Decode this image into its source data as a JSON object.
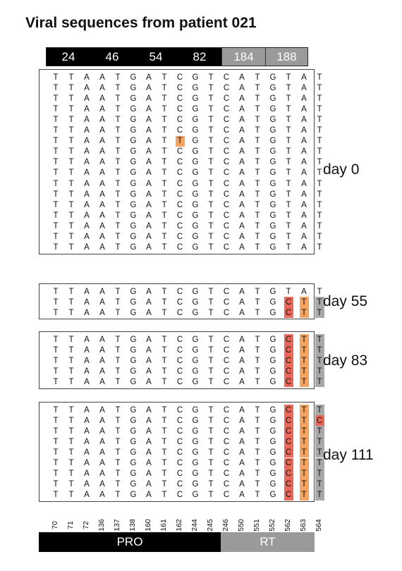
{
  "title": "Viral sequences from patient 021",
  "header_bar": [
    {
      "label": "24",
      "color": "#000000"
    },
    {
      "label": "46",
      "color": "#000000"
    },
    {
      "label": "54",
      "color": "#000000"
    },
    {
      "label": "82",
      "color": "#000000"
    },
    {
      "label": "184",
      "color": "#9a9a9a"
    },
    {
      "label": "188",
      "color": "#9a9a9a"
    }
  ],
  "colors": {
    "orange": "#f4a460",
    "red": "#e9685a",
    "gray": "#a8a8a8"
  },
  "positions": [
    "70",
    "71",
    "72",
    "136",
    "137",
    "138",
    "160",
    "161",
    "162",
    "244",
    "245",
    "246",
    "550",
    "551",
    "552",
    "562",
    "563",
    "564"
  ],
  "reference": "TTAATGATCGTCATGTAT",
  "blocks": [
    {
      "label": "day 0",
      "rows": [
        {
          "seq": "TTAATGATCGTCATGTAT",
          "marks": []
        },
        {
          "seq": "TTAATGATCGTCATGTAT",
          "marks": []
        },
        {
          "seq": "TTAATGATCGTCATGTAT",
          "marks": []
        },
        {
          "seq": "TTAATGATCGTCATGTAT",
          "marks": []
        },
        {
          "seq": "TTAATGATCGTCATGTAT",
          "marks": []
        },
        {
          "seq": "TTAATGATCGTCATGTAT",
          "marks": []
        },
        {
          "seq": "TTAATGATTGTCATGTAT",
          "marks": [
            {
              "col": 8,
              "color": "orange"
            }
          ]
        },
        {
          "seq": "TTAATGATCGTCATGTAT",
          "marks": []
        },
        {
          "seq": "TTAATGATCGTCATGTAT",
          "marks": []
        },
        {
          "seq": "TTAATGATCGTCATGTAT",
          "marks": []
        },
        {
          "seq": "TTAATGATCGTCATGTAT",
          "marks": []
        },
        {
          "seq": "TTAATGATCGTCATGTAT",
          "marks": []
        },
        {
          "seq": "TTAATGATCGTCATGTAT",
          "marks": []
        },
        {
          "seq": "TTAATGATCGTCATGTAT",
          "marks": []
        },
        {
          "seq": "TTAATGATCGTCATGTAT",
          "marks": []
        },
        {
          "seq": "TTAATGATCGTCATGTAT",
          "marks": []
        },
        {
          "seq": "TTAATGATCGTCATGTAT",
          "marks": []
        }
      ]
    },
    {
      "label": "day 55",
      "rows": [
        {
          "seq": "TTAATGATCGTCATGTAT",
          "marks": []
        },
        {
          "seq": "TTAATGATCGTCATGCTT",
          "marks": [
            {
              "col": 15,
              "color": "red"
            },
            {
              "col": 16,
              "color": "orange"
            },
            {
              "col": 17,
              "color": "gray"
            }
          ]
        },
        {
          "seq": "TTAATGATCGTCATGCTT",
          "marks": [
            {
              "col": 15,
              "color": "red"
            },
            {
              "col": 16,
              "color": "orange"
            },
            {
              "col": 17,
              "color": "gray"
            }
          ]
        }
      ]
    },
    {
      "label": "day 83",
      "rows": [
        {
          "seq": "TTAATGATCGTCATGCTT",
          "marks": [
            {
              "col": 15,
              "color": "red"
            },
            {
              "col": 16,
              "color": "orange"
            },
            {
              "col": 17,
              "color": "gray"
            }
          ]
        },
        {
          "seq": "TTAATGATCGTCATGCTT",
          "marks": [
            {
              "col": 15,
              "color": "red"
            },
            {
              "col": 16,
              "color": "orange"
            },
            {
              "col": 17,
              "color": "gray"
            }
          ]
        },
        {
          "seq": "TTAATGATCGTCATGCTT",
          "marks": [
            {
              "col": 15,
              "color": "red"
            },
            {
              "col": 16,
              "color": "orange"
            },
            {
              "col": 17,
              "color": "gray"
            }
          ]
        },
        {
          "seq": "TTAATGATCGTCATGCTT",
          "marks": [
            {
              "col": 15,
              "color": "red"
            },
            {
              "col": 16,
              "color": "orange"
            },
            {
              "col": 17,
              "color": "gray"
            }
          ]
        },
        {
          "seq": "TTAATGATCGTCATGCTT",
          "marks": [
            {
              "col": 15,
              "color": "red"
            },
            {
              "col": 16,
              "color": "orange"
            },
            {
              "col": 17,
              "color": "gray"
            }
          ]
        }
      ]
    },
    {
      "label": "day 111",
      "rows": [
        {
          "seq": "TTAATGATCGTCATGCTT",
          "marks": [
            {
              "col": 15,
              "color": "red"
            },
            {
              "col": 16,
              "color": "orange"
            },
            {
              "col": 17,
              "color": "gray"
            }
          ]
        },
        {
          "seq": "TTAATGATCGTCATGCTC",
          "marks": [
            {
              "col": 15,
              "color": "red"
            },
            {
              "col": 16,
              "color": "orange"
            },
            {
              "col": 17,
              "color": "red"
            }
          ]
        },
        {
          "seq": "TTAATGATCGTCATGCTT",
          "marks": [
            {
              "col": 15,
              "color": "red"
            },
            {
              "col": 16,
              "color": "orange"
            },
            {
              "col": 17,
              "color": "gray"
            }
          ]
        },
        {
          "seq": "TTAATGATCGTCATGCTT",
          "marks": [
            {
              "col": 15,
              "color": "red"
            },
            {
              "col": 16,
              "color": "orange"
            },
            {
              "col": 17,
              "color": "gray"
            }
          ]
        },
        {
          "seq": "TTAATGATCGTCATGCTT",
          "marks": [
            {
              "col": 15,
              "color": "red"
            },
            {
              "col": 16,
              "color": "orange"
            },
            {
              "col": 17,
              "color": "gray"
            }
          ]
        },
        {
          "seq": "TTAATGATCGTCATGCTT",
          "marks": [
            {
              "col": 15,
              "color": "red"
            },
            {
              "col": 16,
              "color": "orange"
            },
            {
              "col": 17,
              "color": "gray"
            }
          ]
        },
        {
          "seq": "TTAATGATCGTCATGCTT",
          "marks": [
            {
              "col": 15,
              "color": "red"
            },
            {
              "col": 16,
              "color": "orange"
            },
            {
              "col": 17,
              "color": "gray"
            }
          ]
        },
        {
          "seq": "TTAATGATCGTCATGCTT",
          "marks": [
            {
              "col": 15,
              "color": "red"
            },
            {
              "col": 16,
              "color": "orange"
            },
            {
              "col": 17,
              "color": "gray"
            }
          ]
        },
        {
          "seq": "TTAATGATCGTCATGCTT",
          "marks": [
            {
              "col": 15,
              "color": "red"
            },
            {
              "col": 16,
              "color": "orange"
            },
            {
              "col": 17,
              "color": "gray"
            }
          ]
        }
      ]
    }
  ],
  "footer_bar": [
    {
      "label": "PRO",
      "color": "#000000"
    },
    {
      "label": "RT",
      "color": "#9a9a9a"
    }
  ]
}
